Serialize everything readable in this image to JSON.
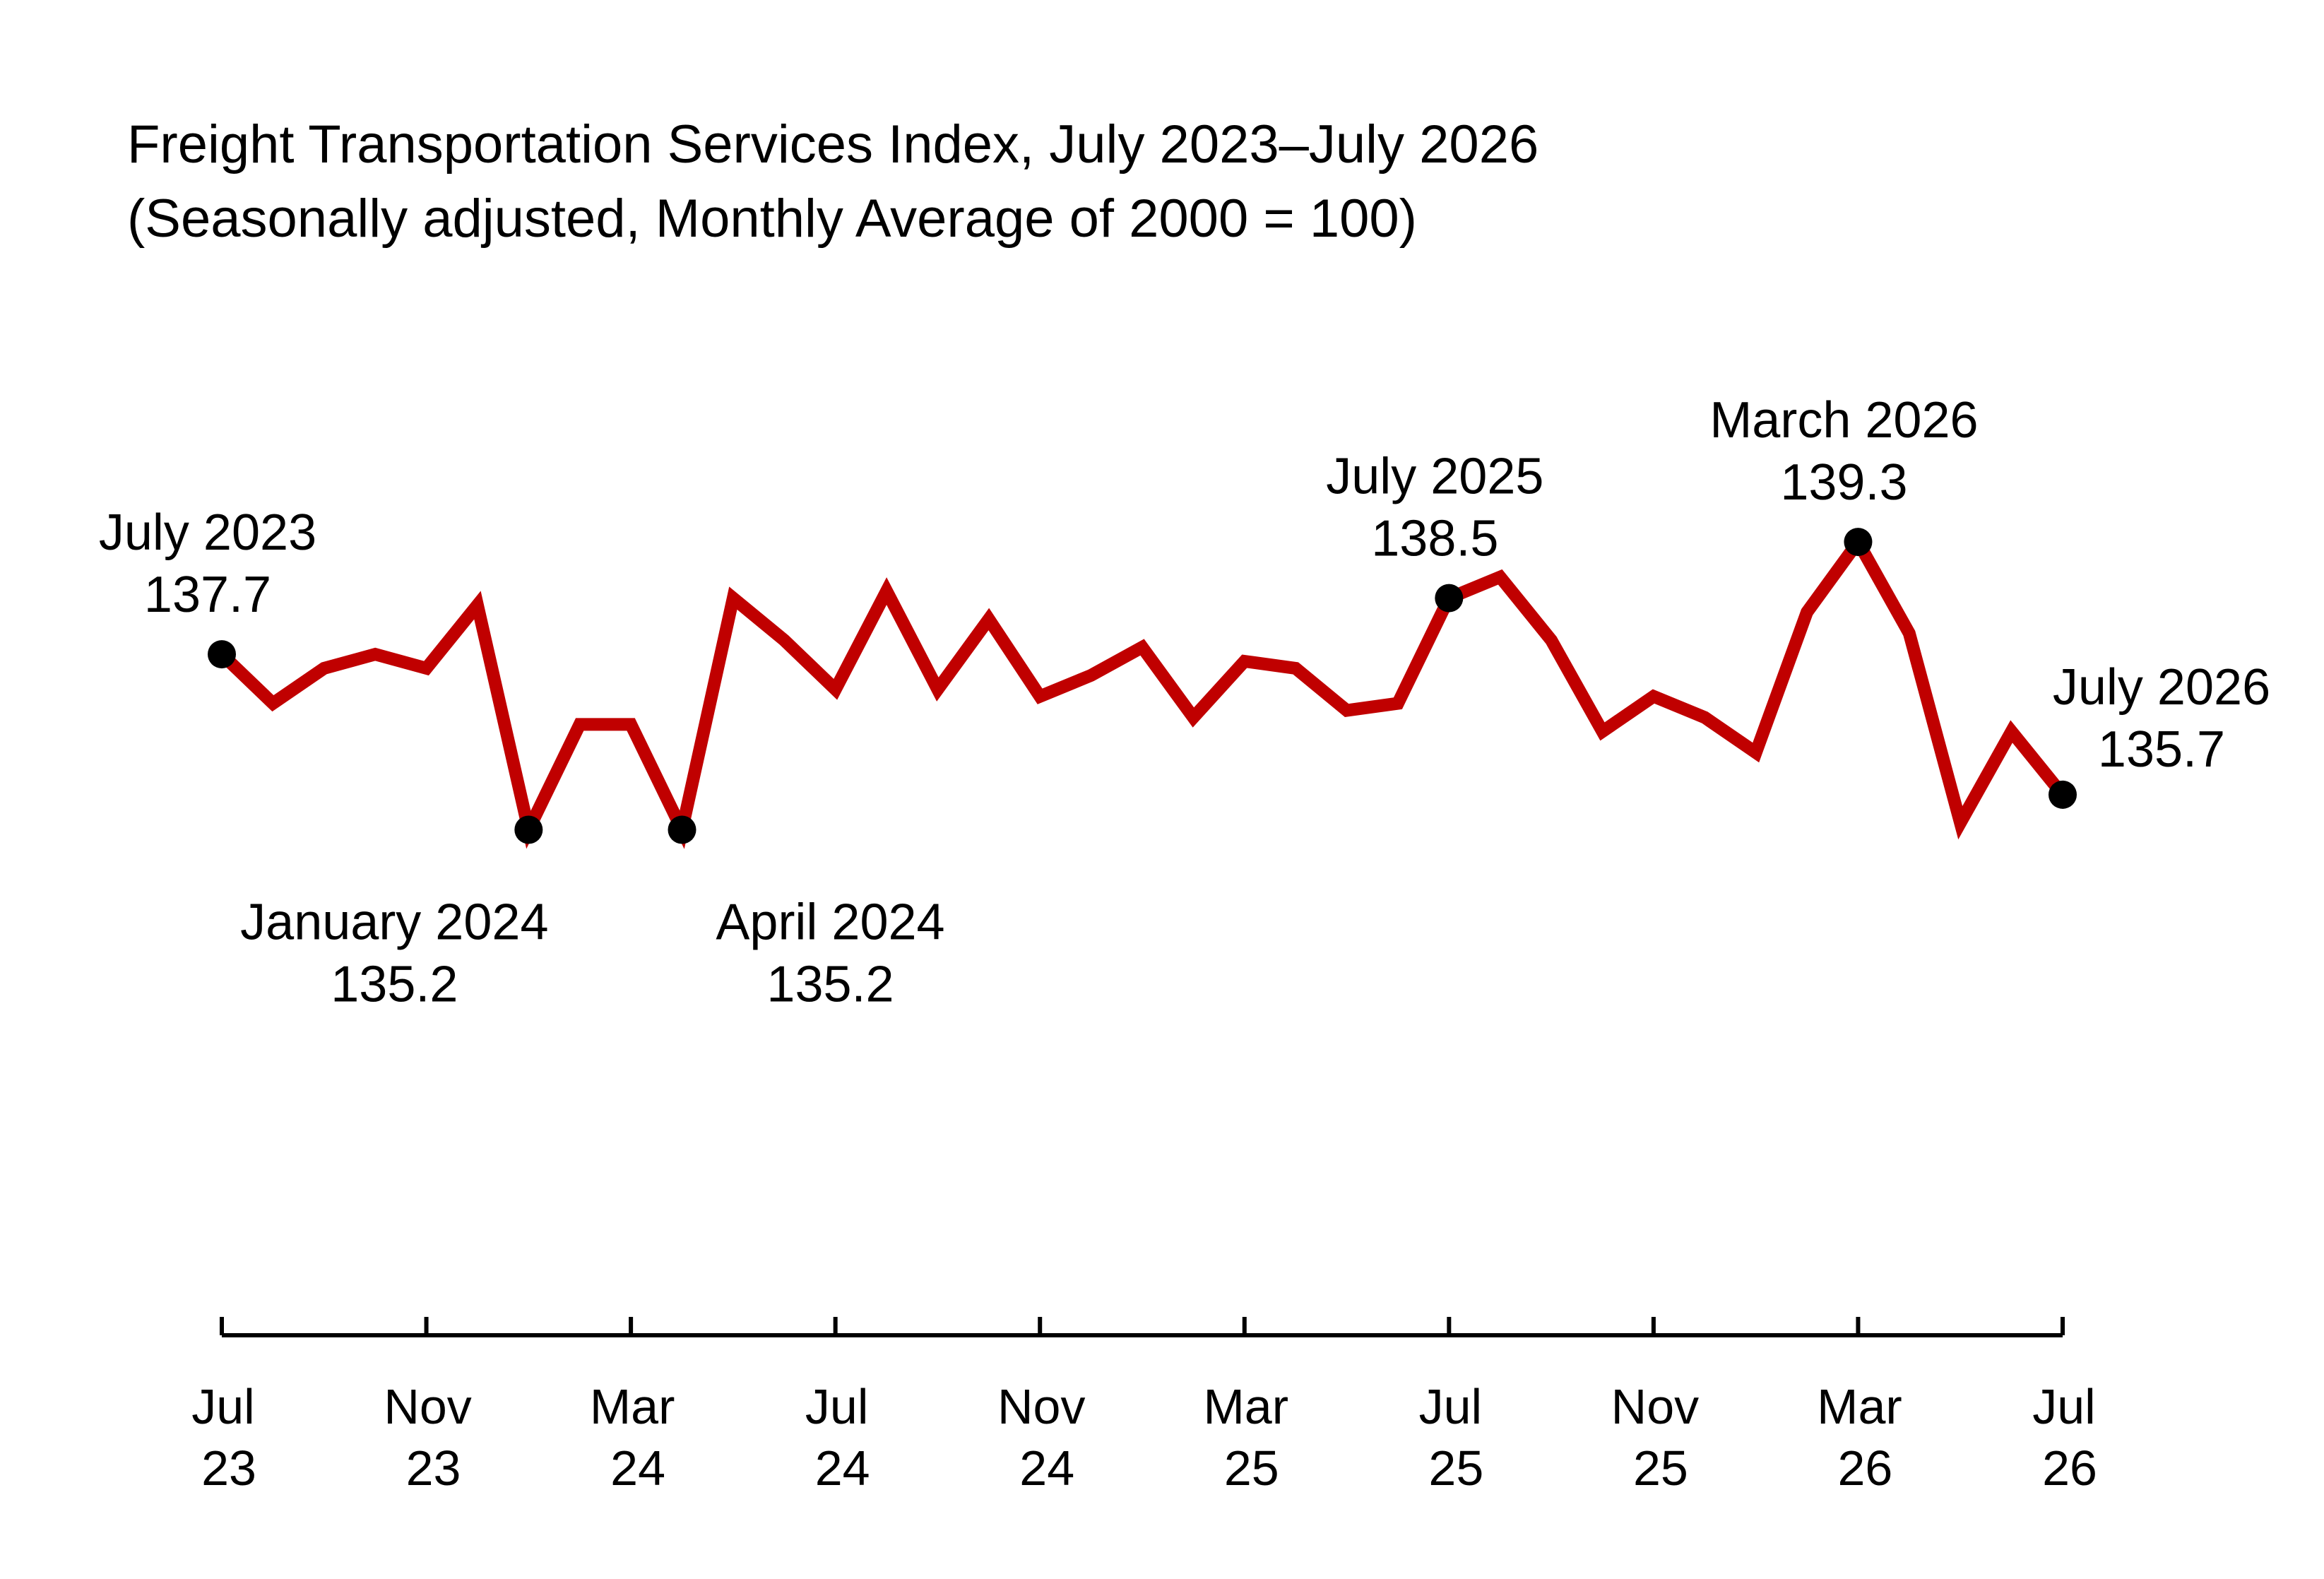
{
  "chart_data": {
    "type": "line",
    "title": "Freight Transportation Services Index, July 2023–July 2026",
    "subtitle": "(Seasonally adjusted, Monthly Average of 2000 = 100)",
    "xlabel": "",
    "ylabel": "",
    "ylim": [
      128,
      144
    ],
    "grid": false,
    "line_color": "#c00000",
    "marker_color": "#000000",
    "x": [
      "2023-07",
      "2023-08",
      "2023-09",
      "2023-10",
      "2023-11",
      "2023-12",
      "2024-01",
      "2024-02",
      "2024-03",
      "2024-04",
      "2024-05",
      "2024-06",
      "2024-07",
      "2024-08",
      "2024-09",
      "2024-10",
      "2024-11",
      "2024-12",
      "2025-01",
      "2025-02",
      "2025-03",
      "2025-04",
      "2025-05",
      "2025-06",
      "2025-07",
      "2025-08",
      "2025-09",
      "2025-10",
      "2025-11",
      "2025-12",
      "2026-01",
      "2026-02",
      "2026-03",
      "2026-04",
      "2026-05",
      "2026-06",
      "2026-07"
    ],
    "series": [
      {
        "values": [
          137.7,
          137.0,
          137.5,
          137.7,
          137.5,
          138.4,
          135.2,
          136.7,
          136.7,
          135.2,
          138.5,
          137.9,
          137.2,
          138.6,
          137.2,
          138.2,
          137.1,
          137.4,
          137.8,
          136.8,
          137.6,
          137.5,
          136.9,
          137.0,
          138.5,
          138.8,
          137.9,
          136.6,
          137.1,
          136.8,
          136.3,
          138.3,
          139.3,
          138.0,
          135.3,
          136.6,
          135.7
        ]
      }
    ],
    "x_ticks": [
      {
        "month": "Jul",
        "year": "23"
      },
      {
        "month": "Nov",
        "year": "23"
      },
      {
        "month": "Mar",
        "year": "24"
      },
      {
        "month": "Jul",
        "year": "24"
      },
      {
        "month": "Nov",
        "year": "24"
      },
      {
        "month": "Mar",
        "year": "25"
      },
      {
        "month": "Jul",
        "year": "25"
      },
      {
        "month": "Nov",
        "year": "25"
      },
      {
        "month": "Mar",
        "year": "26"
      },
      {
        "month": "Jul",
        "year": "26"
      }
    ],
    "x_tick_index": [
      0,
      4,
      8,
      12,
      16,
      20,
      24,
      28,
      32,
      36
    ],
    "annotations": [
      {
        "index": 0,
        "label": "July 2023",
        "value": "137.7",
        "position": "above"
      },
      {
        "index": 6,
        "label": "January 2024",
        "value": "135.2",
        "position": "below"
      },
      {
        "index": 9,
        "label": "April 2024",
        "value": "135.2",
        "position": "below"
      },
      {
        "index": 24,
        "label": "July 2025",
        "value": "138.5",
        "position": "above"
      },
      {
        "index": 32,
        "label": "March 2026",
        "value": "139.3",
        "position": "above"
      },
      {
        "index": 36,
        "label": "July 2026",
        "value": "135.7",
        "position": "above-right"
      }
    ]
  }
}
